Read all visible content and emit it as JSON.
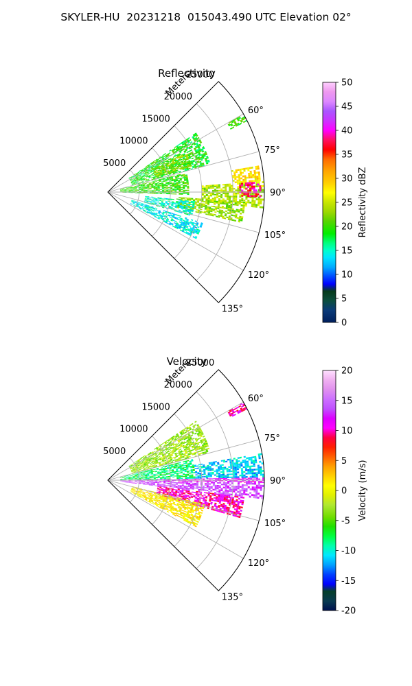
{
  "figure": {
    "title": "SKYLER-HU  20231218  015043.490 UTC Elevation 02°"
  },
  "chart_data": [
    {
      "type": "heatmap",
      "title": "Reflectivity",
      "projection": "polar-sector",
      "radial_label": "Meters",
      "radial_ticks": [
        "5000",
        "10000",
        "15000",
        "20000",
        "25000"
      ],
      "radial_tick_values": [
        5000,
        10000,
        15000,
        20000,
        25000
      ],
      "r_max": 25000,
      "azimuth_ticks": [
        "60°",
        "75°",
        "90°",
        "105°",
        "120°",
        "135°"
      ],
      "azimuth_tick_values": [
        60,
        75,
        90,
        105,
        120,
        135
      ],
      "azimuth_range": [
        45,
        135
      ],
      "grid": true,
      "colorbar": {
        "label": "Reflectivity dBZ",
        "ticks": [
          "0",
          "5",
          "10",
          "15",
          "20",
          "25",
          "30",
          "35",
          "40",
          "45",
          "50"
        ],
        "range": [
          0,
          50
        ]
      },
      "echo_regions": [
        {
          "az": [
            56,
            75
          ],
          "r": [
            4000,
            17000
          ],
          "value": 19
        },
        {
          "az": [
            63,
            73
          ],
          "r": [
            8000,
            14000
          ],
          "value": 22
        },
        {
          "az": [
            76,
            92
          ],
          "r": [
            2000,
            13000
          ],
          "value": 20
        },
        {
          "az": [
            86,
            96
          ],
          "r": [
            15000,
            25000
          ],
          "value": 24
        },
        {
          "az": [
            86,
            92
          ],
          "r": [
            21000,
            24500
          ],
          "value": 38
        },
        {
          "az": [
            94,
            103
          ],
          "r": [
            11000,
            22000
          ],
          "value": 23
        },
        {
          "az": [
            96,
            106
          ],
          "r": [
            6000,
            14000
          ],
          "value": 15
        },
        {
          "az": [
            108,
            118
          ],
          "r": [
            4000,
            16000
          ],
          "value": 14
        },
        {
          "az": [
            60,
            63
          ],
          "r": [
            22000,
            25000
          ],
          "value": 20
        },
        {
          "az": [
            80,
            86
          ],
          "r": [
            20000,
            24500
          ],
          "value": 28
        }
      ]
    },
    {
      "type": "heatmap",
      "title": "Velocity",
      "projection": "polar-sector",
      "radial_label": "Meters",
      "radial_ticks": [
        "5000",
        "10000",
        "15000",
        "20000",
        "25000"
      ],
      "radial_tick_values": [
        5000,
        10000,
        15000,
        20000,
        25000
      ],
      "r_max": 25000,
      "azimuth_ticks": [
        "60°",
        "75°",
        "90°",
        "105°",
        "120°",
        "135°"
      ],
      "azimuth_tick_values": [
        60,
        75,
        90,
        105,
        120,
        135
      ],
      "azimuth_range": [
        45,
        135
      ],
      "grid": true,
      "colorbar": {
        "label": "Velocity (m/s)",
        "ticks": [
          "-20",
          "-15",
          "-10",
          "-5",
          "0",
          "5",
          "10",
          "15",
          "20"
        ],
        "range": [
          -20,
          20
        ]
      },
      "echo_regions": [
        {
          "az": [
            56,
            75
          ],
          "r": [
            4000,
            17000
          ],
          "value": -3
        },
        {
          "az": [
            76,
            89
          ],
          "r": [
            2000,
            14000
          ],
          "value": -8
        },
        {
          "az": [
            80,
            89
          ],
          "r": [
            14000,
            25000
          ],
          "value": -11
        },
        {
          "az": [
            91,
            97
          ],
          "r": [
            2000,
            25000
          ],
          "value": 14
        },
        {
          "az": [
            97,
            106
          ],
          "r": [
            8000,
            22000
          ],
          "value": 10
        },
        {
          "az": [
            104,
            118
          ],
          "r": [
            4000,
            16000
          ],
          "value": 1
        },
        {
          "az": [
            60,
            63
          ],
          "r": [
            22000,
            25000
          ],
          "value": 10
        },
        {
          "az": [
            89,
            91
          ],
          "r": [
            2000,
            25000
          ],
          "value": 12
        }
      ]
    }
  ]
}
